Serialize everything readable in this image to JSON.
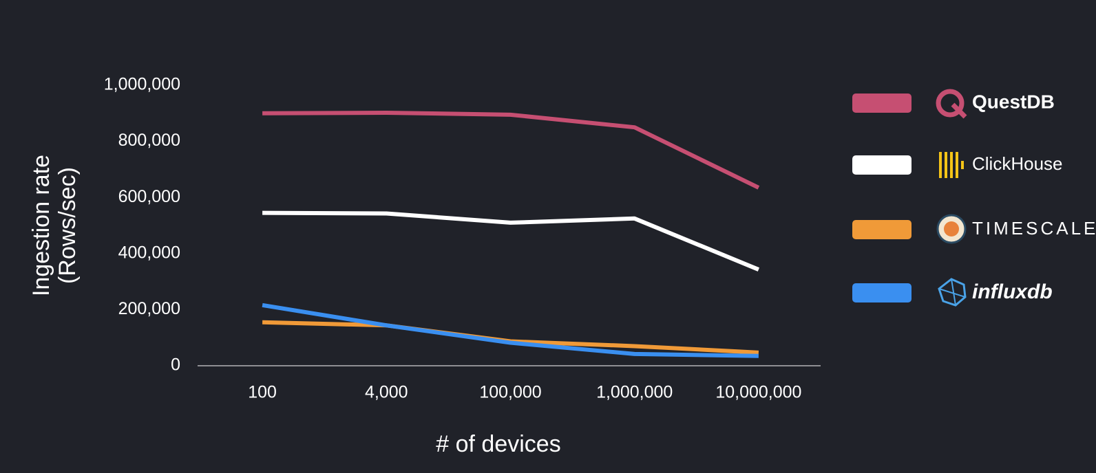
{
  "chart_data": {
    "type": "line",
    "x_label": "# of devices",
    "y_label": [
      "Ingestion rate",
      "(Rows/sec)"
    ],
    "categories": [
      "100",
      "4,000",
      "100,000",
      "1,000,000",
      "10,000,000"
    ],
    "ylim": [
      0,
      1000000
    ],
    "yticks": [
      0,
      {
        "value": 200000,
        "label": "200,000"
      },
      {
        "value": 400000,
        "label": "400,000"
      },
      {
        "value": 600000,
        "label": "600,000"
      },
      {
        "value": 800000,
        "label": "800,000"
      },
      {
        "value": 1000000,
        "label": "1,000,000"
      }
    ],
    "grid": false,
    "legend": "right",
    "series": [
      {
        "name": "QuestDB",
        "color": "#c64f72",
        "values": [
          900000,
          902000,
          895000,
          850000,
          635000
        ]
      },
      {
        "name": "ClickHouse",
        "color": "#ffffff",
        "values": [
          545000,
          543000,
          510000,
          525000,
          343000
        ]
      },
      {
        "name": "TIMESCALE",
        "color": "#f09a38",
        "values": [
          155000,
          144000,
          87000,
          70000,
          47000
        ]
      },
      {
        "name": "influxdb",
        "color": "#3a8ff0",
        "values": [
          216000,
          144000,
          82000,
          42000,
          35000
        ]
      }
    ]
  }
}
